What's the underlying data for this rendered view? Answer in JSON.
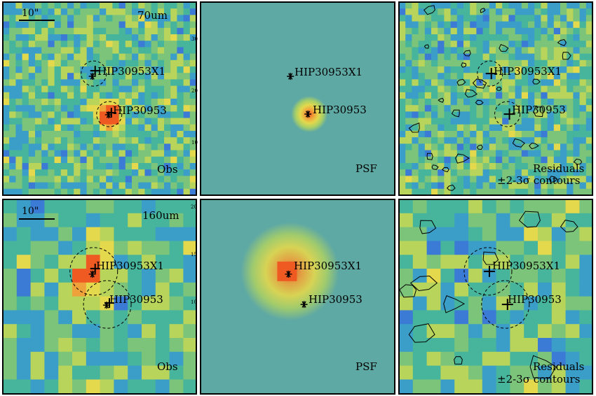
{
  "colors": {
    "background": "#ffffff",
    "panel_border": "#000000",
    "psf_background": "#5fa9a4",
    "source_peak": "#ef5a22",
    "palette": [
      "#3b2a8c",
      "#3d4cc0",
      "#3b7bd6",
      "#3a9ec9",
      "#47b59c",
      "#7cc47a",
      "#b8d45a",
      "#e4d84c",
      "#f0a23a",
      "#ef5a22"
    ]
  },
  "panels": [
    {
      "id": "r1c1",
      "row": 0,
      "col": 0,
      "kind": "obs",
      "scalebar": "10\"",
      "band": "70um",
      "corner_label": "Obs",
      "seed": 11
    },
    {
      "id": "r1c2",
      "row": 0,
      "col": 1,
      "kind": "psf",
      "corner_label": "PSF"
    },
    {
      "id": "r1c3",
      "row": 0,
      "col": 2,
      "kind": "residual",
      "corner_label_1": "Residuals",
      "corner_label_2": "±2-3σ contours",
      "seed": 23
    },
    {
      "id": "r2c1",
      "row": 1,
      "col": 0,
      "kind": "obs",
      "scalebar": "10\"",
      "band": "160um",
      "corner_label": "Obs",
      "seed": 37
    },
    {
      "id": "r2c2",
      "row": 1,
      "col": 1,
      "kind": "psf",
      "corner_label": "PSF"
    },
    {
      "id": "r2c3",
      "row": 1,
      "col": 2,
      "kind": "residual",
      "corner_label_1": "Residuals",
      "corner_label_2": "±2-3σ contours",
      "seed": 51
    }
  ],
  "sources": {
    "companion": "HIP30953X1",
    "primary": "HIP30953"
  },
  "axis_ticks": {
    "row1_psf_right": [
      "30",
      "20",
      "10"
    ],
    "row2_obs_right": [
      "20",
      "15",
      "10"
    ],
    "row2_psf_left": [
      "20",
      "15",
      "10"
    ]
  }
}
